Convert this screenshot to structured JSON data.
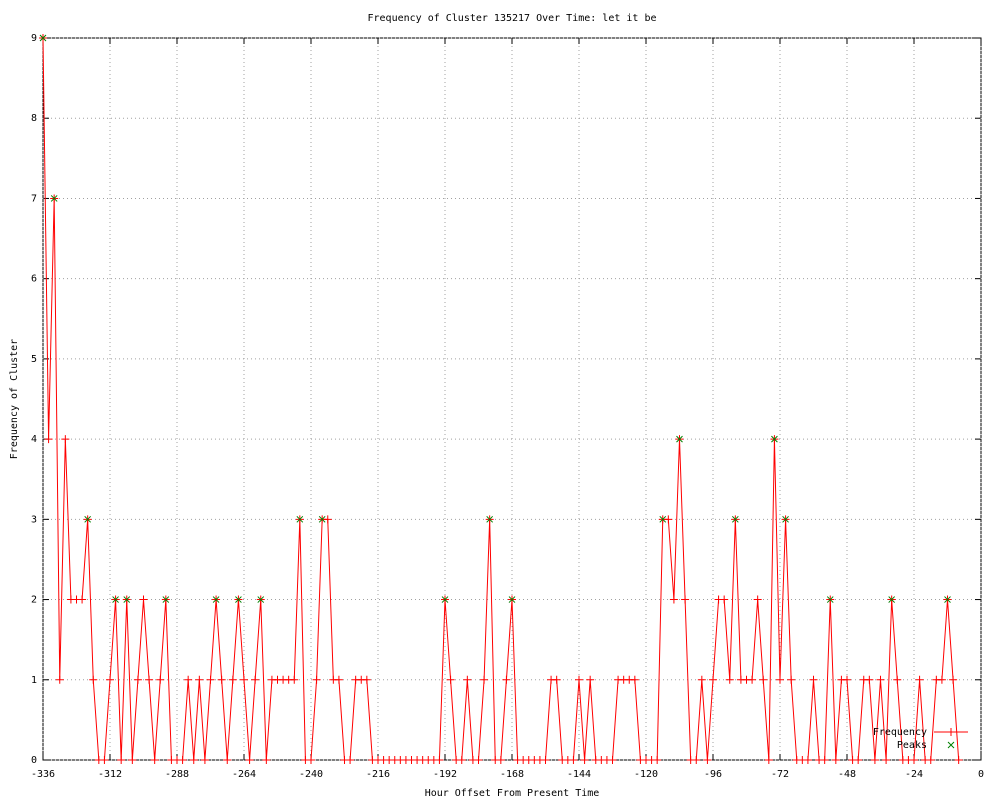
{
  "chart_data": {
    "type": "line",
    "title": "Frequency of Cluster 135217 Over Time: let it be",
    "x_label": "Hour Offset From Present Time",
    "y_label": "Frequency of Cluster",
    "xlim": [
      -336,
      0
    ],
    "ylim": [
      0,
      9
    ],
    "xticks": [
      -336,
      -312,
      -288,
      -264,
      -240,
      -216,
      -192,
      -168,
      -144,
      -120,
      -96,
      -72,
      -48,
      -24,
      0
    ],
    "yticks": [
      0,
      1,
      2,
      3,
      4,
      5,
      6,
      7,
      8,
      9
    ],
    "grid": true,
    "legend": "bottom-right",
    "series": [
      {
        "name": "Frequency",
        "color": "#ff0000",
        "marker": "+",
        "x": [
          -336,
          -334,
          -332,
          -330,
          -328,
          -326,
          -324,
          -322,
          -320,
          -318,
          -316,
          -314,
          -312,
          -310,
          -308,
          -306,
          -304,
          -302,
          -300,
          -298,
          -296,
          -294,
          -292,
          -290,
          -288,
          -286,
          -284,
          -282,
          -280,
          -278,
          -276,
          -274,
          -272,
          -270,
          -268,
          -266,
          -264,
          -262,
          -260,
          -258,
          -256,
          -254,
          -252,
          -250,
          -248,
          -246,
          -244,
          -242,
          -240,
          -238,
          -236,
          -234,
          -232,
          -230,
          -228,
          -226,
          -224,
          -222,
          -220,
          -218,
          -216,
          -214,
          -212,
          -210,
          -208,
          -206,
          -204,
          -202,
          -200,
          -198,
          -196,
          -194,
          -192,
          -190,
          -188,
          -186,
          -184,
          -182,
          -180,
          -178,
          -176,
          -174,
          -172,
          -170,
          -168,
          -166,
          -164,
          -162,
          -160,
          -158,
          -156,
          -154,
          -152,
          -150,
          -148,
          -146,
          -144,
          -142,
          -140,
          -138,
          -136,
          -134,
          -132,
          -130,
          -128,
          -126,
          -124,
          -122,
          -120,
          -118,
          -116,
          -114,
          -112,
          -110,
          -108,
          -106,
          -104,
          -102,
          -100,
          -98,
          -96,
          -94,
          -92,
          -90,
          -88,
          -86,
          -84,
          -82,
          -80,
          -78,
          -76,
          -74,
          -72,
          -70,
          -68,
          -66,
          -64,
          -62,
          -60,
          -58,
          -56,
          -54,
          -52,
          -50,
          -48,
          -46,
          -44,
          -42,
          -40,
          -38,
          -36,
          -34,
          -32,
          -30,
          -28,
          -26,
          -24,
          -22,
          -20,
          -18,
          -16,
          -14,
          -12,
          -10,
          -8
        ],
        "values": [
          9,
          4,
          7,
          1,
          4,
          2,
          2,
          2,
          3,
          1,
          0,
          0,
          1,
          2,
          0,
          2,
          0,
          1,
          2,
          1,
          0,
          1,
          2,
          0,
          0,
          0,
          1,
          0,
          1,
          0,
          1,
          2,
          1,
          0,
          1,
          2,
          1,
          0,
          1,
          2,
          0,
          1,
          1,
          1,
          1,
          1,
          3,
          0,
          0,
          1,
          3,
          3,
          1,
          1,
          0,
          0,
          1,
          1,
          1,
          0,
          0,
          0,
          0,
          0,
          0,
          0,
          0,
          0,
          0,
          0,
          0,
          0,
          2,
          1,
          0,
          0,
          1,
          0,
          0,
          1,
          3,
          0,
          0,
          1,
          2,
          0,
          0,
          0,
          0,
          0,
          0,
          1,
          1,
          0,
          0,
          0,
          1,
          0,
          1,
          0,
          0,
          0,
          0,
          1,
          1,
          1,
          1,
          0,
          0,
          0,
          0,
          3,
          3,
          2,
          4,
          2,
          0,
          0,
          1,
          0,
          1,
          2,
          2,
          1,
          3,
          1,
          1,
          1,
          2,
          1,
          0,
          4,
          1,
          3,
          1,
          0,
          0,
          0,
          1,
          0,
          0,
          2,
          0,
          1,
          1,
          0,
          0,
          1,
          1,
          0,
          1,
          0,
          2,
          1,
          0,
          0,
          0,
          1,
          0,
          0,
          1,
          1,
          2,
          1,
          0
        ]
      },
      {
        "name": "Peaks",
        "color": "#008000",
        "marker": "x",
        "x": [
          -336,
          -332,
          -320,
          -310,
          -306,
          -292,
          -274,
          -266,
          -258,
          -244,
          -236,
          -192,
          -176,
          -168,
          -114,
          -108,
          -88,
          -74,
          -70,
          -54,
          -32,
          -12
        ],
        "values": [
          9,
          7,
          3,
          2,
          2,
          2,
          2,
          2,
          2,
          3,
          3,
          2,
          3,
          2,
          3,
          4,
          3,
          4,
          3,
          2,
          2,
          2
        ]
      }
    ]
  }
}
